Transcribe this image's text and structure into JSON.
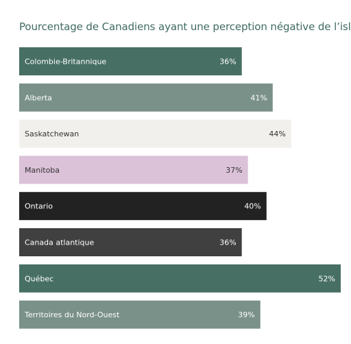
{
  "chart_data": {
    "type": "bar",
    "orientation": "horizontal",
    "title": "Pourcentage de Canadiens ayant une perception négative de l’islam",
    "xlabel": "",
    "ylabel": "",
    "xlim": [
      0,
      52
    ],
    "grid": false,
    "legend": "none",
    "categories": [
      "Colombie-Britannique",
      "Alberta",
      "Saskatchewan",
      "Manitoba",
      "Ontario",
      "Canada atlantique",
      "Québec",
      "Territoires du Nord-Ouest"
    ],
    "values": [
      36,
      41,
      44,
      37,
      40,
      36,
      52,
      39
    ],
    "value_labels": [
      "36%",
      "41%",
      "44%",
      "37%",
      "40%",
      "36%",
      "52%",
      "39%"
    ],
    "bar_colors": [
      "#476f64",
      "#7a9189",
      "#f1f0ec",
      "#dbc2d8",
      "#222222",
      "#404040",
      "#476f64",
      "#7a9189"
    ],
    "text_colors": [
      "#ffffff",
      "#ffffff",
      "#333333",
      "#333333",
      "#ffffff",
      "#ffffff",
      "#ffffff",
      "#ffffff"
    ]
  }
}
